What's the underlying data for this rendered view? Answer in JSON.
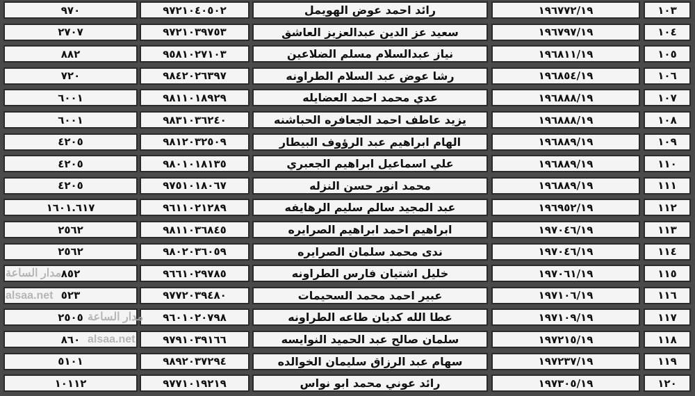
{
  "rows": [
    {
      "idx": "١٠٣",
      "num": "١٩٦٧٧٢/١٩",
      "name": "رائد احمد عوض الهويمل",
      "phone": "٩٧٢١٠٤٠٥٠٢",
      "amount": "٩٧٠"
    },
    {
      "idx": "١٠٤",
      "num": "١٩٦٧٩٧/١٩",
      "name": "سعيد عز الدين عبدالعزيز العاشق",
      "phone": "٩٧٢١٠٣٩٧٥٣",
      "amount": "٢٧٠٧"
    },
    {
      "idx": "١٠٥",
      "num": "١٩٦٨١١/١٩",
      "name": "نياز عبدالسلام مسلم الضلاعين",
      "phone": "٩٥٨١٠٢٧١٠٣",
      "amount": "٨٨٢"
    },
    {
      "idx": "١٠٦",
      "num": "١٩٦٨٥٤/١٩",
      "name": "رشا عوض عبد السلام الطراونه",
      "phone": "٩٨٤٢٠٢٦٣٩٧",
      "amount": "٧٢٠"
    },
    {
      "idx": "١٠٧",
      "num": "١٩٦٨٨٨/١٩",
      "name": "عدي محمد احمد العضايله",
      "phone": "٩٨١١٠١٨٩٢٩",
      "amount": "٦٠٠١"
    },
    {
      "idx": "١٠٨",
      "num": "١٩٦٨٨٨/١٩",
      "name": "يزيد عاطف احمد الجعافره الحباشنه",
      "phone": "٩٨٣١٠٣٦٢٤٠",
      "amount": "٦٠٠١"
    },
    {
      "idx": "١٠٩",
      "num": "١٩٦٨٨٩/١٩",
      "name": "الهام ابراهيم عبد الرؤوف البيطار",
      "phone": "٩٨١٢٠٣٢٥٠٩",
      "amount": "٤٢٠٥"
    },
    {
      "idx": "١١٠",
      "num": "١٩٦٨٨٩/١٩",
      "name": "علي اسماعيل ابراهيم الجعبري",
      "phone": "٩٨٠١٠١٨١٣٥",
      "amount": "٤٢٠٥"
    },
    {
      "idx": "١١١",
      "num": "١٩٦٨٨٩/١٩",
      "name": "محمد انور حسن النزله",
      "phone": "٩٧٥١٠١٨٠٦٧",
      "amount": "٤٢٠٥"
    },
    {
      "idx": "١١٢",
      "num": "١٩٦٩٥٢/١٩",
      "name": "عبد المجيد سالم سليم الرهايفه",
      "phone": "٩٦١١٠٢١٢٨٩",
      "amount": "١٦٠١.٦١٧"
    },
    {
      "idx": "١١٣",
      "num": "١٩٧٠٤٦/١٩",
      "name": "ابراهيم احمد ابراهيم الصرايره",
      "phone": "٩٨١١٠٣٦٨٤٥",
      "amount": "٢٥٦٢"
    },
    {
      "idx": "١١٤",
      "num": "١٩٧٠٤٦/١٩",
      "name": "ندى محمد سلمان الصرايره",
      "phone": "٩٨٠٢٠٣٦٠٥٩",
      "amount": "٢٥٦٢"
    },
    {
      "idx": "١١٥",
      "num": "١٩٧٠٦١/١٩",
      "name": "خليل اشتيان فارس الطراونه",
      "phone": "٩٦٦١٠٢٩٧٨٥",
      "amount": "٨٥٢"
    },
    {
      "idx": "١١٦",
      "num": "١٩٧١٠٦/١٩",
      "name": "عبير احمد محمد السحيمات",
      "phone": "٩٧٧٢٠٣٩٤٨٠",
      "amount": "٥٢٣"
    },
    {
      "idx": "١١٧",
      "num": "١٩٧١٠٩/١٩",
      "name": "عطا الله كديان طاعه الطراونه",
      "phone": "٩٦٠١٠٢٠٧٩٨",
      "amount": "٢٥٠٥"
    },
    {
      "idx": "١١٨",
      "num": "١٩٧٢١٥/١٩",
      "name": "سلمان صالح عبد الحميد النوايسه",
      "phone": "٩٧٩١٠٣٩١٦٦",
      "amount": "٨٦٠"
    },
    {
      "idx": "١١٩",
      "num": "١٩٧٢٣٧/١٩",
      "name": "سهام عبد الرزاق سليمان الخوالده",
      "phone": "٩٨٩٢٠٣٧٢٩٤",
      "amount": "٥١٠١"
    },
    {
      "idx": "١٢٠",
      "num": "١٩٧٣٠٥/١٩",
      "name": "رائد عوني محمد ابو نواس",
      "phone": "٩٧٧١٠١٩٢١٩",
      "amount": "١٠١١٢"
    }
  ],
  "watermark": {
    "line1": "مدار الساعة",
    "line2": "alsaa.net"
  }
}
